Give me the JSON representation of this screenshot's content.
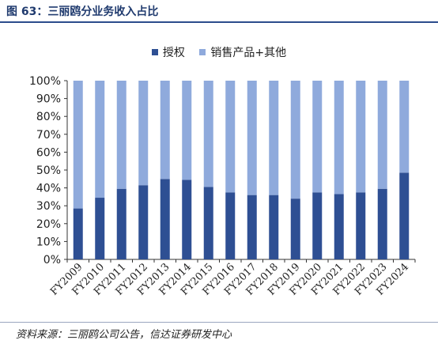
{
  "figure_title": "图 63：三丽鸥分业务收入占比",
  "source_note": "资料来源：三丽鸥公司公告，信达证券研发中心",
  "colors": {
    "accent": "#1f3a6e",
    "licensing": "#2e4f93",
    "products": "#8faadc"
  },
  "chart_data": {
    "type": "bar",
    "stacked": true,
    "categories": [
      "FY2009",
      "FY2010",
      "FY2011",
      "FY2012",
      "FY2013",
      "FY2014",
      "FY2015",
      "FY2016",
      "FY2017",
      "FY2018",
      "FY2019",
      "FY2020",
      "FY2021",
      "FY2022",
      "FY2023",
      "FY2024"
    ],
    "series": [
      {
        "name": "授权",
        "color": "#2e4f93",
        "values": [
          28.5,
          34.5,
          39.5,
          41.5,
          45.0,
          44.5,
          40.5,
          37.5,
          36.0,
          36.0,
          34.0,
          37.5,
          36.5,
          37.5,
          39.5,
          48.5
        ]
      },
      {
        "name": "销售产品+其他",
        "color": "#8faadc",
        "values": [
          71.5,
          65.5,
          60.5,
          58.5,
          55.0,
          55.5,
          59.5,
          62.5,
          64.0,
          64.0,
          66.0,
          62.5,
          63.5,
          62.5,
          60.5,
          51.5
        ]
      }
    ],
    "ylim": [
      0,
      100
    ],
    "yticks": [
      "0%",
      "10%",
      "20%",
      "30%",
      "40%",
      "50%",
      "60%",
      "70%",
      "80%",
      "90%",
      "100%"
    ],
    "xlabel": "",
    "ylabel": "",
    "grid": false,
    "legend_position": "top-center"
  }
}
